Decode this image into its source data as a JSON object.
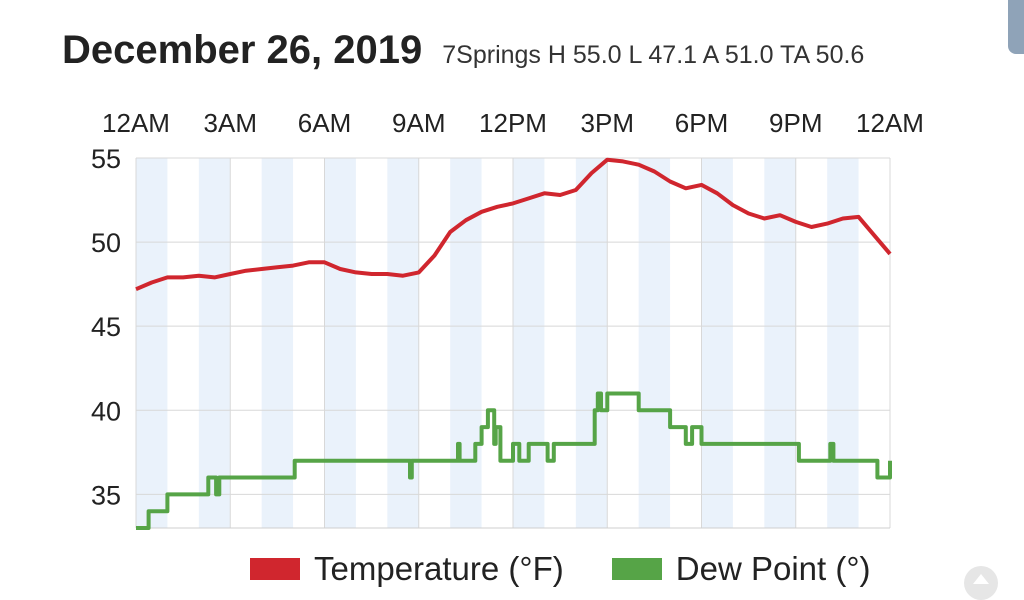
{
  "header": {
    "date": "December 26, 2019",
    "summary": "7Springs H 55.0 L 47.1 A 51.0 TA 50.6"
  },
  "chart_data": {
    "type": "line",
    "title": "December 26, 2019",
    "x_tick_labels": [
      "12AM",
      "3AM",
      "6AM",
      "9AM",
      "12PM",
      "3PM",
      "6PM",
      "9PM",
      "12AM"
    ],
    "x_range_hours": [
      0,
      24
    ],
    "ylim": [
      33,
      55
    ],
    "y_ticks": [
      35,
      40,
      45,
      50,
      55
    ],
    "grid": true,
    "legend_position": "bottom",
    "series": [
      {
        "name": "Temperature (°F)",
        "color": "#d0262e",
        "x": [
          0,
          0.5,
          1,
          1.5,
          2,
          2.5,
          3,
          3.5,
          4,
          4.5,
          5,
          5.5,
          6,
          6.5,
          7,
          7.5,
          8,
          8.5,
          9,
          9.5,
          10,
          10.5,
          11,
          11.5,
          12,
          12.5,
          13,
          13.5,
          14,
          14.5,
          15,
          15.5,
          16,
          16.5,
          17,
          17.5,
          18,
          18.5,
          19,
          19.5,
          20,
          20.5,
          21,
          21.5,
          22,
          22.5,
          23,
          23.5,
          24
        ],
        "values": [
          47.2,
          47.6,
          47.9,
          47.9,
          48.0,
          47.9,
          48.1,
          48.3,
          48.4,
          48.5,
          48.6,
          48.8,
          48.8,
          48.4,
          48.2,
          48.1,
          48.1,
          48.0,
          48.2,
          49.2,
          50.6,
          51.3,
          51.8,
          52.1,
          52.3,
          52.6,
          52.9,
          52.8,
          53.1,
          54.1,
          54.9,
          54.8,
          54.6,
          54.2,
          53.6,
          53.2,
          53.4,
          52.9,
          52.2,
          51.7,
          51.4,
          51.6,
          51.2,
          50.9,
          51.1,
          51.4,
          51.5,
          50.4,
          49.3
        ]
      },
      {
        "name": "Dew Point (°)",
        "color": "#56a447",
        "x": [
          0,
          0.3,
          0.4,
          0.9,
          1.0,
          2.2,
          2.3,
          2.5,
          2.55,
          2.65,
          3.0,
          5.0,
          5.05,
          7.0,
          8.7,
          8.72,
          8.78,
          10.2,
          10.25,
          10.3,
          10.8,
          11.0,
          11.2,
          11.4,
          11.45,
          11.6,
          12.0,
          12.2,
          12.5,
          13.1,
          13.3,
          13.5,
          14.0,
          14.6,
          14.7,
          14.8,
          15.0,
          15.5,
          16.0,
          16.6,
          17.0,
          17.2,
          17.5,
          17.7,
          18.0,
          21.0,
          21.1,
          22.1,
          22.2,
          23.5,
          23.6,
          23.8,
          24.0
        ],
        "values": [
          33,
          33,
          34,
          34,
          35,
          35,
          36,
          36,
          35,
          36,
          36,
          36,
          37,
          37,
          37,
          36,
          37,
          37,
          38,
          37,
          38,
          39,
          40,
          38,
          39,
          37,
          38,
          37,
          38,
          37,
          38,
          38,
          38,
          40,
          41,
          40,
          41,
          41,
          40,
          40,
          39,
          39,
          38,
          39,
          38,
          38,
          37,
          38,
          37,
          37,
          36,
          36,
          37
        ]
      }
    ]
  }
}
